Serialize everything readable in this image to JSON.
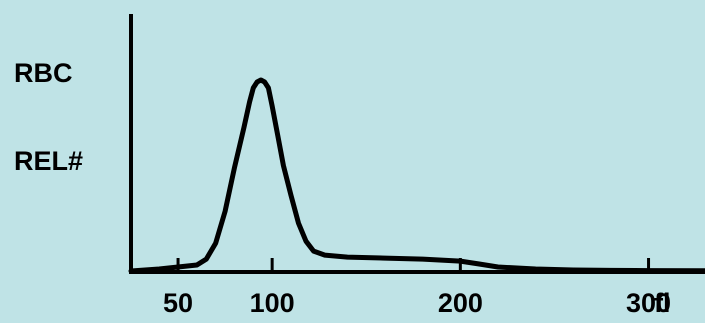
{
  "chart_data": {
    "type": "area",
    "title": "",
    "ylabel_line1": "RBC",
    "ylabel_line2": "REL#",
    "xlabel": "fl",
    "xlim": [
      25,
      330
    ],
    "ylim": [
      0,
      100
    ],
    "x_ticks": [
      {
        "value": 50,
        "label": "50"
      },
      {
        "value": 100,
        "label": "100"
      },
      {
        "value": 200,
        "label": "200"
      },
      {
        "value": 300,
        "label": "300"
      }
    ],
    "series": [
      {
        "points": [
          [
            25,
            0
          ],
          [
            40,
            1
          ],
          [
            50,
            2
          ],
          [
            60,
            3
          ],
          [
            65,
            6
          ],
          [
            70,
            14
          ],
          [
            75,
            30
          ],
          [
            80,
            52
          ],
          [
            85,
            72
          ],
          [
            88,
            85
          ],
          [
            90,
            92
          ],
          [
            92,
            95
          ],
          [
            94,
            96
          ],
          [
            96,
            95
          ],
          [
            98,
            92
          ],
          [
            100,
            83
          ],
          [
            103,
            68
          ],
          [
            106,
            53
          ],
          [
            110,
            38
          ],
          [
            114,
            24
          ],
          [
            118,
            15
          ],
          [
            122,
            10
          ],
          [
            128,
            8
          ],
          [
            140,
            7
          ],
          [
            160,
            6.5
          ],
          [
            180,
            6
          ],
          [
            190,
            5.5
          ],
          [
            200,
            5
          ],
          [
            210,
            3.5
          ],
          [
            220,
            2
          ],
          [
            240,
            1
          ],
          [
            260,
            0.5
          ],
          [
            280,
            0.3
          ],
          [
            300,
            0.2
          ],
          [
            330,
            0.1
          ]
        ]
      }
    ],
    "grid": false,
    "legend": "none"
  },
  "colors": {
    "background": "#bfe3e6",
    "ink": "#000000"
  }
}
